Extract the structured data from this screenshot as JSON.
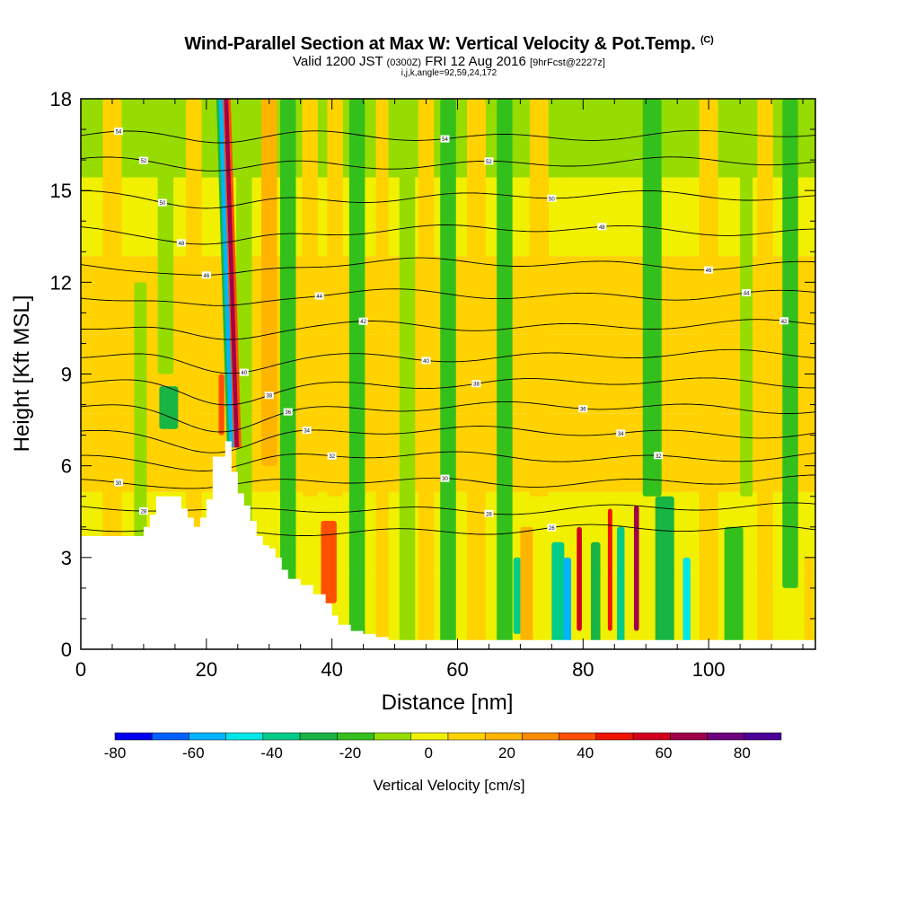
{
  "header": {
    "title_main": "Wind-Parallel Section at Max W: Vertical Velocity & Pot.Temp.",
    "title_mark": "(C)",
    "subtitle_a": "Valid 1200 JST",
    "subtitle_b": "(0300Z)",
    "subtitle_c": "FRI 12 Aug 2016",
    "subtitle_d": "[9hrFcst@2227z]",
    "subtitle_line3": "i,j,k,angle=92,59,24,172"
  },
  "chart_data": {
    "type": "heatmap",
    "xlabel": "Distance [nm]",
    "ylabel": "Height [Kft MSL]",
    "xlim": [
      0,
      117
    ],
    "ylim": [
      0,
      18
    ],
    "x_ticks": [
      0,
      20,
      40,
      60,
      80,
      100
    ],
    "y_ticks": [
      0,
      3,
      6,
      9,
      12,
      15,
      18
    ],
    "grid": false,
    "colorbar": {
      "label": "Vertical Velocity [cm/s]",
      "range": [
        -80,
        90
      ],
      "tick_values": [
        -80,
        -60,
        -40,
        -20,
        0,
        20,
        40,
        60,
        80
      ],
      "tick_labels": [
        "-80",
        "-60",
        "-40",
        "-20",
        "0",
        "20",
        "40",
        "60",
        "80"
      ],
      "colors": [
        "#0000f0",
        "#0060ff",
        "#00b4ff",
        "#00e6e6",
        "#00cc88",
        "#18b444",
        "#34c01c",
        "#96dc00",
        "#f0f000",
        "#ffd200",
        "#ffb400",
        "#ff8c00",
        "#ff5000",
        "#f01400",
        "#d2001e",
        "#a0004b",
        "#6e007d",
        "#4b0096"
      ]
    },
    "terrain": {
      "x": [
        0,
        9,
        10,
        11,
        12,
        15,
        16,
        17,
        18,
        19,
        20,
        21,
        22,
        23,
        24,
        25,
        26,
        27,
        28,
        29,
        30,
        31,
        32,
        33,
        35,
        37,
        39,
        40,
        41,
        43,
        45,
        47,
        49,
        50,
        117
      ],
      "height": [
        3.7,
        3.7,
        4.0,
        4.4,
        5.0,
        5.0,
        4.6,
        4.3,
        4.0,
        4.3,
        4.9,
        6.3,
        6.3,
        6.8,
        5.8,
        5.1,
        4.7,
        4.2,
        3.7,
        3.4,
        3.3,
        3.0,
        2.6,
        2.3,
        2.1,
        1.8,
        1.5,
        1.1,
        0.8,
        0.6,
        0.5,
        0.4,
        0.3,
        0.3,
        0.3
      ]
    },
    "wfield": {
      "base": [
        2,
        3,
        5,
        8,
        9,
        4,
        -6
      ],
      "columns": [
        {
          "x": 5,
          "w": 3,
          "ymin": 0,
          "ymax": 18,
          "v": 12
        },
        {
          "x": 9.5,
          "w": 2,
          "ymin": 2,
          "ymax": 12,
          "v": -12
        },
        {
          "x": 14,
          "w": 3,
          "ymin": 7.2,
          "ymax": 8.6,
          "v": -30
        },
        {
          "x": 13.5,
          "w": 2.5,
          "ymin": 9,
          "ymax": 18,
          "v": -12
        },
        {
          "x": 18,
          "w": 2.5,
          "ymin": 4,
          "ymax": 18,
          "v": 12
        },
        {
          "x": 22.4,
          "w": 0.9,
          "ymin": 7,
          "ymax": 9,
          "v": 40
        },
        {
          "x": 26,
          "w": 2.5,
          "ymin": 3.5,
          "ymax": 18,
          "v": -10
        },
        {
          "x": 30,
          "w": 2.5,
          "ymin": 6,
          "ymax": 18,
          "v": 15
        },
        {
          "x": 33,
          "w": 2.5,
          "ymin": 0,
          "ymax": 18,
          "v": -15
        },
        {
          "x": 36.5,
          "w": 2.5,
          "ymin": 5,
          "ymax": 18,
          "v": 12
        },
        {
          "x": 39.5,
          "w": 2.5,
          "ymin": 1.5,
          "ymax": 4.2,
          "v": 38
        },
        {
          "x": 40.5,
          "w": 2.5,
          "ymin": 5,
          "ymax": 18,
          "v": 10
        },
        {
          "x": 44,
          "w": 2.5,
          "ymin": 0,
          "ymax": 18,
          "v": -14
        },
        {
          "x": 48,
          "w": 2,
          "ymin": 0,
          "ymax": 18,
          "v": 12
        },
        {
          "x": 52,
          "w": 2.5,
          "ymin": 0,
          "ymax": 18,
          "v": -12
        },
        {
          "x": 55,
          "w": 2.5,
          "ymin": 0,
          "ymax": 18,
          "v": 12
        },
        {
          "x": 58.5,
          "w": 2.5,
          "ymin": 0,
          "ymax": 18,
          "v": -14
        },
        {
          "x": 63,
          "w": 3,
          "ymin": 0,
          "ymax": 18,
          "v": 14
        },
        {
          "x": 67.5,
          "w": 2.5,
          "ymin": 0,
          "ymax": 18,
          "v": -16
        },
        {
          "x": 69.5,
          "w": 1.2,
          "ymin": 0.5,
          "ymax": 3,
          "v": -42
        },
        {
          "x": 71,
          "w": 2,
          "ymin": 0,
          "ymax": 4,
          "v": 22
        },
        {
          "x": 73,
          "w": 3,
          "ymin": 5,
          "ymax": 18,
          "v": 12
        },
        {
          "x": 76,
          "w": 2,
          "ymin": 0,
          "ymax": 3.5,
          "v": -38
        },
        {
          "x": 77.5,
          "w": 1.2,
          "ymin": 0,
          "ymax": 3,
          "v": -55
        },
        {
          "x": 79.4,
          "w": 0.8,
          "ymin": 0.6,
          "ymax": 4,
          "v": 60
        },
        {
          "x": 82,
          "w": 1.5,
          "ymin": 0,
          "ymax": 3.5,
          "v": -30
        },
        {
          "x": 84.3,
          "w": 0.7,
          "ymin": 0.6,
          "ymax": 4.6,
          "v": 50
        },
        {
          "x": 86,
          "w": 1.2,
          "ymin": 0,
          "ymax": 4,
          "v": -35
        },
        {
          "x": 88.5,
          "w": 0.8,
          "ymin": 0.6,
          "ymax": 4.7,
          "v": 66
        },
        {
          "x": 93,
          "w": 3,
          "ymin": 0,
          "ymax": 5,
          "v": -28
        },
        {
          "x": 96.5,
          "w": 1.2,
          "ymin": 0,
          "ymax": 3,
          "v": -48
        },
        {
          "x": 91,
          "w": 3,
          "ymin": 5,
          "ymax": 18,
          "v": -14
        },
        {
          "x": 100,
          "w": 3,
          "ymin": 0,
          "ymax": 18,
          "v": 12
        },
        {
          "x": 104,
          "w": 3,
          "ymin": 0,
          "ymax": 4,
          "v": -20
        },
        {
          "x": 106,
          "w": 2,
          "ymin": 5,
          "ymax": 18,
          "v": -12
        },
        {
          "x": 109,
          "w": 2.5,
          "ymin": 0,
          "ymax": 18,
          "v": 14
        },
        {
          "x": 113,
          "w": 2.5,
          "ymin": 2,
          "ymax": 18,
          "v": -16
        },
        {
          "x": 116,
          "w": 1.5,
          "ymin": 0,
          "ymax": 3,
          "v": 12
        }
      ],
      "updraft": {
        "y0": 6.6,
        "y1": 18,
        "x_at_y0": 24.0,
        "x_at_y1": 22.3,
        "up_offset": 0.85,
        "width": 0.65,
        "down": -55,
        "up": 62
      }
    },
    "isentropes": {
      "levels": [
        {
          "y0": 16.8,
          "dip": 0.2,
          "label": "54"
        },
        {
          "y0": 15.9,
          "dip": 0.2,
          "label": "52"
        },
        {
          "y0": 14.8,
          "dip": 0.3,
          "label": "50"
        },
        {
          "y0": 13.7,
          "dip": 0.4,
          "label": "48"
        },
        {
          "y0": 12.6,
          "dip": 0.4,
          "label": "46"
        },
        {
          "y0": 11.6,
          "dip": 0.5,
          "label": "44"
        },
        {
          "y0": 10.6,
          "dip": 0.6,
          "label": "42"
        },
        {
          "y0": 9.6,
          "dip": 0.6,
          "label": "40"
        },
        {
          "y0": 8.7,
          "dip": 0.6,
          "label": "38"
        },
        {
          "y0": 7.9,
          "dip": 0.6,
          "label": "36"
        },
        {
          "y0": 7.1,
          "dip": 0.5,
          "label": "34"
        },
        {
          "y0": 6.3,
          "dip": 0.4,
          "label": "32"
        },
        {
          "y0": 5.5,
          "dip": 0.3,
          "label": "30"
        },
        {
          "y0": 4.6,
          "dip": 0.2,
          "label": "28"
        },
        {
          "y0": 3.9,
          "dip": 0.1,
          "label": "26"
        }
      ]
    }
  }
}
